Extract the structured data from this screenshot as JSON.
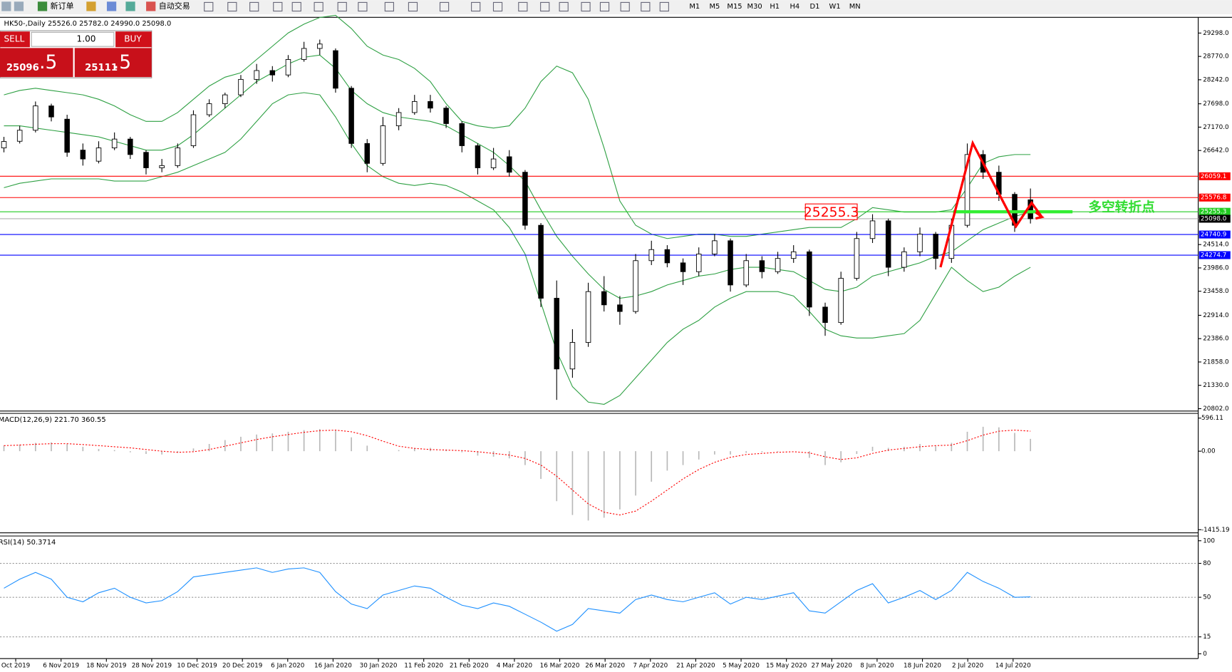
{
  "toolbar": {
    "new_order": "新订单",
    "auto_trading": "自动交易",
    "timeframes": [
      "M1",
      "M5",
      "M15",
      "M30",
      "H1",
      "H4",
      "D1",
      "W1",
      "MN"
    ]
  },
  "trade_panel": {
    "sell": "SELL",
    "lots": "1.00",
    "buy": "BUY",
    "bid_main": "25096",
    "bid_pip": ".5",
    "ask_main": "25111",
    "ask_pip": ".5"
  },
  "chart_data": [
    {
      "type": "candlestick",
      "title": "HK50-,Daily  25526.0 25782.0 24990.0 25098.0",
      "date_labels": [
        "Oct 2019",
        "6 Nov 2019",
        "18 Nov 2019",
        "28 Nov 2019",
        "10 Dec 2019",
        "20 Dec 2019",
        "6 Jan 2020",
        "16 Jan 2020",
        "30 Jan 2020",
        "11 Feb 2020",
        "21 Feb 2020",
        "4 Mar 2020",
        "16 Mar 2020",
        "26 Mar 2020",
        "7 Apr 2020",
        "21 Apr 2020",
        "5 May 2020",
        "15 May 2020",
        "27 May 2020",
        "8 Jun 2020",
        "18 Jun 2020",
        "2 Jul 2020",
        "14 Jul 2020"
      ],
      "open": [
        26700,
        26850,
        27100,
        27650,
        27350,
        26650,
        26400,
        26700,
        26900,
        26600,
        26250,
        26300,
        26750,
        27450,
        27700,
        27900,
        28250,
        28450,
        28350,
        28700,
        28950,
        28900,
        28050,
        26800,
        26350,
        27200,
        27500,
        27750,
        27600,
        27250,
        26750,
        26250,
        26500,
        26150,
        24950,
        23300,
        21700,
        22300,
        23450,
        23150,
        23000,
        24150,
        24400,
        24100,
        23900,
        24300,
        24600,
        23600,
        24150,
        23900,
        24200,
        24350,
        23100,
        22750,
        23750,
        24650,
        25050,
        24000,
        24350,
        24750,
        24200,
        24950,
        26550,
        26150,
        25650,
        25526
      ],
      "high": [
        26950,
        27200,
        27750,
        27700,
        27450,
        26800,
        26850,
        27050,
        26950,
        26650,
        26450,
        26800,
        27550,
        27800,
        27950,
        28350,
        28600,
        28550,
        28800,
        29100,
        29150,
        28950,
        28100,
        26900,
        27400,
        27600,
        27900,
        27900,
        27650,
        27300,
        26800,
        26700,
        26650,
        26200,
        25000,
        23700,
        22600,
        23650,
        23800,
        23350,
        24300,
        24600,
        24500,
        24200,
        24450,
        24750,
        24650,
        24300,
        24250,
        24350,
        24500,
        24400,
        23200,
        23900,
        24800,
        25200,
        25100,
        24450,
        24900,
        24800,
        25100,
        26800,
        26650,
        26300,
        25700,
        25782
      ],
      "low": [
        26600,
        26800,
        27050,
        27300,
        26500,
        26300,
        26350,
        26650,
        26450,
        26100,
        26150,
        26250,
        26700,
        27400,
        27600,
        27850,
        28150,
        28200,
        28300,
        28650,
        28800,
        27950,
        26700,
        26150,
        26300,
        27100,
        27450,
        27500,
        27150,
        26600,
        26100,
        26200,
        26050,
        24850,
        23100,
        21000,
        21500,
        22200,
        23000,
        22700,
        22950,
        24050,
        24000,
        23600,
        23800,
        24250,
        23450,
        23550,
        23750,
        23850,
        24100,
        22900,
        22450,
        22700,
        23700,
        24550,
        23800,
        23900,
        24250,
        23950,
        24100,
        24900,
        26000,
        25500,
        24800,
        24990
      ],
      "close": [
        26845,
        27100,
        27650,
        27400,
        26600,
        26450,
        26700,
        26900,
        26550,
        26250,
        26300,
        26700,
        27450,
        27700,
        27900,
        28250,
        28450,
        28350,
        28700,
        28950,
        29050,
        28050,
        26800,
        26350,
        27200,
        27500,
        27750,
        27600,
        27250,
        26750,
        26250,
        26450,
        26150,
        24950,
        23300,
        21700,
        22300,
        23450,
        23150,
        23000,
        24150,
        24400,
        24100,
        23900,
        24300,
        24600,
        23600,
        24150,
        23900,
        24200,
        24350,
        23100,
        22750,
        23750,
        24650,
        25050,
        24000,
        24350,
        24750,
        24200,
        24950,
        26550,
        26150,
        25650,
        24950,
        25098
      ],
      "bollinger": {
        "color": "#2ea043",
        "upper": [
          27900,
          28000,
          28050,
          28000,
          27950,
          27900,
          27800,
          27650,
          27450,
          27300,
          27300,
          27500,
          27800,
          28100,
          28300,
          28400,
          28700,
          29000,
          29300,
          29500,
          29650,
          29700,
          29400,
          29000,
          28800,
          28700,
          28500,
          28200,
          27700,
          27300,
          27200,
          27150,
          27200,
          27600,
          28200,
          28550,
          28400,
          27800,
          26700,
          25500,
          24950,
          24750,
          24650,
          24700,
          24750,
          24750,
          24700,
          24700,
          24750,
          24800,
          24850,
          24900,
          24900,
          24900,
          25100,
          25350,
          25300,
          25250,
          25250,
          25250,
          25300,
          25800,
          26350,
          26500,
          26550,
          26550
        ],
        "middle": [
          27200,
          27200,
          27150,
          27100,
          27050,
          27000,
          26950,
          26850,
          26750,
          26650,
          26650,
          26750,
          27000,
          27300,
          27600,
          27900,
          28200,
          28400,
          28600,
          28750,
          28800,
          28500,
          28000,
          27700,
          27500,
          27400,
          27350,
          27300,
          27200,
          27000,
          26800,
          26600,
          26300,
          25950,
          25300,
          24700,
          24250,
          23850,
          23500,
          23300,
          23350,
          23450,
          23600,
          23700,
          23800,
          23850,
          23950,
          24000,
          24000,
          23950,
          23900,
          23700,
          23500,
          23450,
          23550,
          23800,
          23900,
          24000,
          24100,
          24250,
          24350,
          24600,
          24850,
          25000,
          25150,
          25250
        ],
        "lower": [
          25800,
          25900,
          25950,
          26000,
          26000,
          26000,
          26000,
          25950,
          25950,
          25950,
          26050,
          26150,
          26300,
          26450,
          26600,
          26900,
          27300,
          27700,
          27900,
          27950,
          27900,
          27400,
          26800,
          26300,
          26050,
          25900,
          25850,
          25900,
          25850,
          25700,
          25500,
          25300,
          24900,
          24300,
          23200,
          22100,
          21300,
          20950,
          20900,
          21100,
          21500,
          21900,
          22300,
          22600,
          22800,
          23100,
          23300,
          23450,
          23450,
          23450,
          23350,
          23000,
          22600,
          22450,
          22400,
          22400,
          22450,
          22500,
          22800,
          23400,
          24000,
          23700,
          23450,
          23550,
          23800,
          24000
        ]
      },
      "ylim": [
        20766,
        29653
      ],
      "yticks": [
        {
          "value": 29298,
          "label": "29298.0"
        },
        {
          "value": 28770,
          "label": "28770.0"
        },
        {
          "value": 28242,
          "label": "28242.0"
        },
        {
          "value": 27698,
          "label": "27698.0"
        },
        {
          "value": 27170,
          "label": "27170.0"
        },
        {
          "value": 26642,
          "label": "26642.0"
        },
        {
          "value": 24514,
          "label": "24514.0"
        },
        {
          "value": 23986,
          "label": "23986.0"
        },
        {
          "value": 23458,
          "label": "23458.0"
        },
        {
          "value": 22914,
          "label": "22914.0"
        },
        {
          "value": 22386,
          "label": "22386.0"
        },
        {
          "value": 21858,
          "label": "21858.0"
        },
        {
          "value": 21330,
          "label": "21330.0"
        },
        {
          "value": 20802,
          "label": "20802.0"
        }
      ],
      "levels": [
        {
          "value": 26059.1,
          "label": "26059.1",
          "color": "#ff0000"
        },
        {
          "value": 25576.8,
          "label": "25576.8",
          "color": "#ff0000"
        },
        {
          "value": 25255.3,
          "label": "25255.3",
          "color": "#22cc22"
        },
        {
          "value": 25098,
          "label": "25098.0",
          "color": "#000000"
        },
        {
          "value": 24740.9,
          "label": "24740.9",
          "color": "#0000ff"
        },
        {
          "value": 24274.7,
          "label": "24274.7",
          "color": "#0000ff"
        }
      ],
      "annotation": "多空转折点"
    },
    {
      "type": "macd",
      "title": "MACD(12,26,9) 221.70 360.55",
      "histogram": {
        "color": "#b8b8b8",
        "values": [
          100,
          120,
          150,
          160,
          130,
          80,
          40,
          20,
          -20,
          -50,
          -60,
          -30,
          50,
          130,
          200,
          260,
          300,
          320,
          350,
          380,
          400,
          370,
          250,
          100,
          0,
          20,
          60,
          60,
          30,
          -20,
          -80,
          -100,
          -130,
          -250,
          -500,
          -900,
          -1150,
          -1250,
          -1200,
          -1050,
          -800,
          -550,
          -350,
          -250,
          -150,
          -60,
          -60,
          -30,
          -20,
          -10,
          0,
          -120,
          -250,
          -200,
          -50,
          80,
          60,
          80,
          130,
          90,
          150,
          350,
          440,
          430,
          330,
          221.7
        ]
      },
      "signal": {
        "color": "#ff0000",
        "values": [
          100,
          110,
          125,
          135,
          135,
          120,
          100,
          80,
          60,
          30,
          0,
          -20,
          -10,
          30,
          90,
          150,
          210,
          260,
          300,
          340,
          370,
          380,
          350,
          280,
          180,
          90,
          50,
          30,
          20,
          10,
          -10,
          -40,
          -70,
          -130,
          -250,
          -450,
          -700,
          -950,
          -1100,
          -1150,
          -1080,
          -900,
          -700,
          -500,
          -330,
          -200,
          -110,
          -60,
          -40,
          -20,
          -10,
          -30,
          -100,
          -150,
          -120,
          -40,
          20,
          50,
          80,
          100,
          110,
          190,
          290,
          360,
          380,
          360.55
        ]
      },
      "ylim": [
        -1472,
        667
      ],
      "yticks": [
        {
          "value": 596.11,
          "label": "596.11"
        },
        {
          "value": 0,
          "label": "0.00"
        },
        {
          "value": -1415.19,
          "label": "-1415.19"
        }
      ]
    },
    {
      "type": "line",
      "title": "RSI(14) 50.3714",
      "color": "#1e90ff",
      "values": [
        58,
        66,
        72,
        66,
        50,
        46,
        54,
        58,
        50,
        45,
        47,
        55,
        68,
        70,
        72,
        74,
        76,
        72,
        75,
        76,
        72,
        55,
        44,
        40,
        52,
        56,
        60,
        58,
        50,
        43,
        40,
        45,
        42,
        35,
        28,
        20,
        26,
        40,
        38,
        36,
        48,
        52,
        48,
        46,
        50,
        54,
        44,
        50,
        48,
        51,
        54,
        38,
        36,
        46,
        56,
        62,
        45,
        50,
        56,
        48,
        56,
        72,
        64,
        58,
        50,
        50.3714
      ],
      "ylim": [
        -4.2,
        104.2
      ],
      "yticks": [
        100,
        80,
        50,
        15,
        0
      ],
      "levels": [
        80,
        50,
        15
      ]
    }
  ]
}
